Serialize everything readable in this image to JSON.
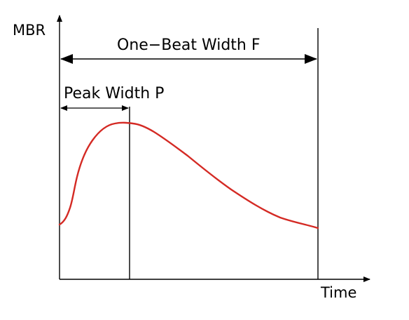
{
  "diagram": {
    "y_axis_label": "MBR",
    "x_axis_label": "Time",
    "one_beat_width_label": "One−Beat Width F",
    "peak_width_label": "Peak Width P",
    "colors": {
      "curve": "#d42a24",
      "lines": "#000000",
      "background": "#ffffff"
    },
    "elements": [
      "y-axis",
      "x-axis",
      "one-beat-width-double-arrow",
      "peak-width-double-arrow",
      "peak-marker-line",
      "beat-end-marker-line",
      "mbr-waveform-curve"
    ]
  }
}
